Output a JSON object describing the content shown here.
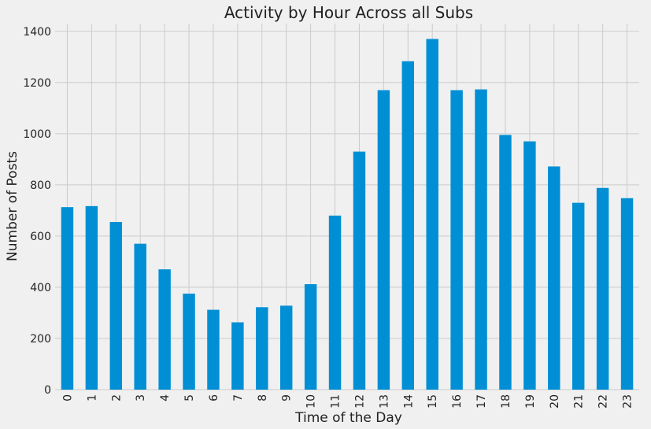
{
  "chart_data": {
    "type": "bar",
    "title": "Activity by Hour Across all Subs",
    "xlabel": "Time of the Day",
    "ylabel": "Number of Posts",
    "categories": [
      "0",
      "1",
      "2",
      "3",
      "4",
      "5",
      "6",
      "7",
      "8",
      "9",
      "10",
      "11",
      "12",
      "13",
      "14",
      "15",
      "16",
      "17",
      "18",
      "19",
      "20",
      "21",
      "22",
      "23"
    ],
    "values": [
      713,
      717,
      655,
      570,
      470,
      375,
      312,
      263,
      322,
      328,
      412,
      680,
      930,
      1170,
      1283,
      1370,
      1170,
      1173,
      995,
      970,
      872,
      730,
      788,
      748
    ],
    "ylim": [
      0,
      1430
    ],
    "yticks": [
      0,
      200,
      400,
      600,
      800,
      1000,
      1200,
      1400
    ],
    "grid": true,
    "bar_color": "#008fd5",
    "background": "#f0f0f0"
  }
}
